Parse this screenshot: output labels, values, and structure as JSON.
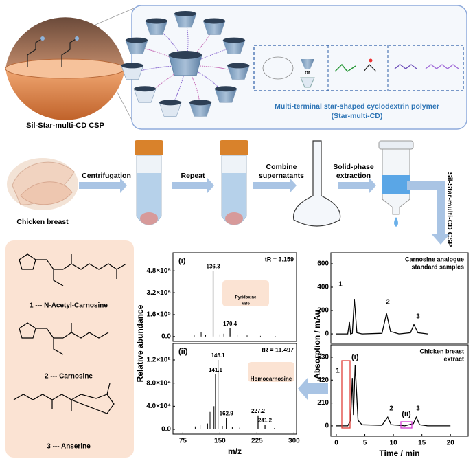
{
  "figure": {
    "top": {
      "csp_label": "Sil-Star-multi-CD CSP",
      "polymer_caption": [
        "Multi-terminal star-shaped cyclodextrin polymer",
        "(Star-multi-CD)"
      ],
      "legend_or": "or"
    },
    "workflow": {
      "sample": "Chicken breast",
      "steps": [
        [
          "Centrifugation"
        ],
        [
          "Repeat"
        ],
        [
          "Combine",
          "supernatants"
        ],
        [
          "Solid-phase",
          "extraction"
        ]
      ],
      "column": "Sil-Star-multi-CD CSP"
    },
    "analytes": [
      "1 --- N-Acetyl-Carnosine",
      "2 --- Carnosine",
      "3 --- Anserine"
    ]
  },
  "chart_data": [
    {
      "type": "stem",
      "panel_label": "(i)",
      "retention_label": "tR = 3.159",
      "ylabel": "Relative abundance",
      "inset_label": [
        "Pyridoxine",
        "VB6"
      ],
      "color": "#000000",
      "xlim": [
        55,
        305
      ],
      "ylim": [
        -36000,
        612000
      ],
      "yticks": [
        {
          "value": 0,
          "label": "0.0"
        },
        {
          "value": 160000,
          "label": "1.6×10⁵"
        },
        {
          "value": 320000,
          "label": "3.2×10⁵"
        },
        {
          "value": 480000,
          "label": "4.8×10⁵"
        }
      ],
      "mz": [
        98,
        112,
        121,
        150,
        158,
        185,
        205,
        232,
        262
      ],
      "intensity": [
        8000,
        30000,
        12000,
        15000,
        20000,
        10000,
        8000,
        5000,
        3000
      ],
      "annotated": {
        "mz": [
          136.3,
          170.4
        ],
        "intensity": [
          480000,
          60000
        ]
      }
    },
    {
      "type": "stem",
      "panel_label": "(ii)",
      "retention_label": "tR = 11.497",
      "xlabel": "m/z",
      "inset_label": [
        "Homocarnosine"
      ],
      "color": "#000000",
      "xlim": [
        55,
        305
      ],
      "ylim": [
        -8300,
        148500
      ],
      "xticks": [
        75,
        150,
        225,
        300
      ],
      "yticks": [
        {
          "value": 0,
          "label": "0.0"
        },
        {
          "value": 40000,
          "label": "4.0×10⁴"
        },
        {
          "value": 80000,
          "label": "8.0×10⁴"
        },
        {
          "value": 120000,
          "label": "1.2×10⁵"
        }
      ],
      "mz": [
        100,
        110,
        125,
        130,
        138,
        155,
        175,
        190,
        260
      ],
      "intensity": [
        5000,
        8000,
        10000,
        30000,
        40000,
        6000,
        4000,
        3000,
        2000
      ],
      "annotated": {
        "mz": [
          146.1,
          141.1,
          162.9,
          227.2,
          241.2
        ],
        "intensity": [
          120000,
          95000,
          20000,
          24000,
          8000
        ]
      }
    },
    {
      "type": "line",
      "title": [
        "Carnosine analogue",
        "standard samples"
      ],
      "ylabel": "Absorption / mAu",
      "color": "#000000",
      "peak_labels": [
        "1",
        "2",
        "3"
      ],
      "xlim": [
        -0.96,
        23.1
      ],
      "ylim": [
        -82,
        694
      ],
      "yticks": [
        0,
        200,
        400,
        600
      ],
      "x": [
        0,
        2,
        2.3,
        2.5,
        2.8,
        3.159,
        3.6,
        4.5,
        8,
        8.8,
        9.5,
        11,
        13,
        13.6,
        14.3,
        16
      ],
      "values": [
        0,
        0,
        100,
        0,
        5,
        300,
        10,
        0,
        5,
        175,
        20,
        0,
        10,
        80,
        10,
        0
      ]
    },
    {
      "type": "line",
      "title": [
        "Chicken breast",
        "extract"
      ],
      "xlabel": "Time / min",
      "color": "#000000",
      "peak_labels": [
        "1",
        "2",
        "3"
      ],
      "region_labels": [
        "(i)",
        "(ii)"
      ],
      "xlim": [
        -0.96,
        23.1
      ],
      "ylim": [
        -95,
        743
      ],
      "xticks": [
        0,
        5,
        10,
        15,
        20
      ],
      "yticks": [
        0,
        210,
        420,
        630
      ],
      "x": [
        0,
        2,
        2.5,
        2.8,
        3.0,
        3.3,
        3.8,
        4.5,
        8,
        9,
        9.6,
        11,
        12,
        13.5,
        14,
        14.6,
        16,
        20
      ],
      "values": [
        0,
        0,
        50,
        440,
        100,
        560,
        50,
        10,
        5,
        80,
        10,
        5,
        0,
        20,
        80,
        10,
        0,
        0
      ]
    }
  ]
}
